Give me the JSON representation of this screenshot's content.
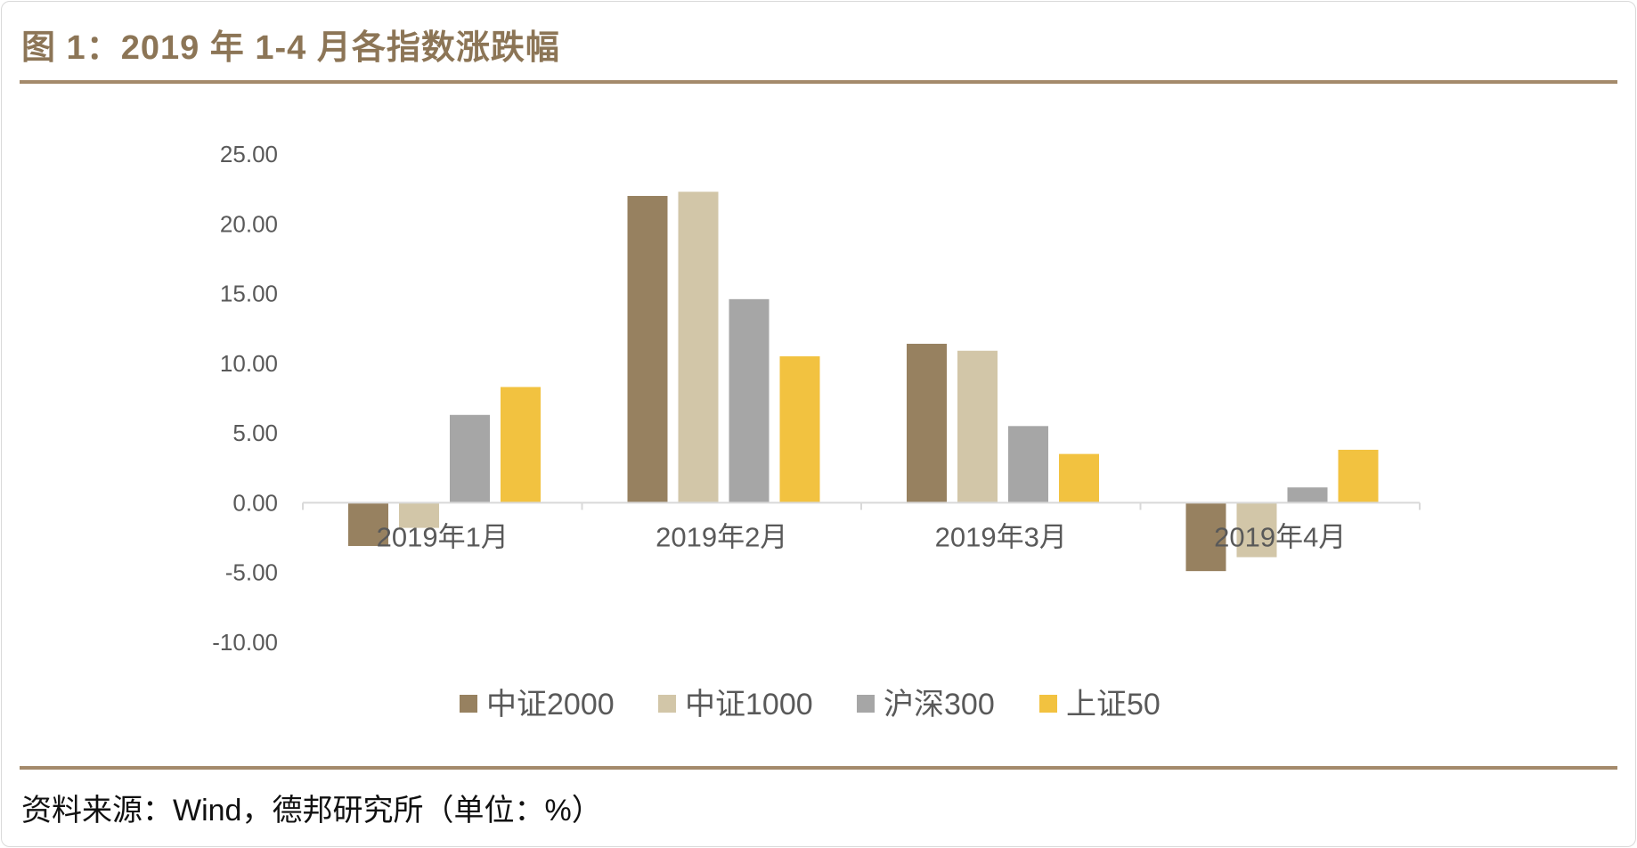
{
  "figure": {
    "title": "图 1：2019 年 1-4 月各指数涨跌幅",
    "source": "资料来源：Wind，德邦研究所（单位：%）"
  },
  "colors": {
    "title": "#8c7556",
    "rule": "#a48a6b",
    "axis_text": "#595959",
    "axis_line": "#d9d9d9"
  },
  "chart_data": {
    "type": "bar",
    "title": "",
    "xlabel": "",
    "ylabel": "",
    "ylim": [
      -10,
      25
    ],
    "yticks": [
      25,
      20,
      15,
      10,
      5,
      0,
      -5,
      -10
    ],
    "ytick_labels": [
      "25.00",
      "20.00",
      "15.00",
      "10.00",
      "5.00",
      "0.00",
      "-5.00",
      "-10.00"
    ],
    "categories": [
      "2019年1月",
      "2019年2月",
      "2019年3月",
      "2019年4月"
    ],
    "series": [
      {
        "name": "中证2000",
        "color": "#978160",
        "values": [
          -3.1,
          22.0,
          11.4,
          -4.9
        ]
      },
      {
        "name": "中证1000",
        "color": "#d2c6a8",
        "values": [
          -1.8,
          22.3,
          10.9,
          -3.9
        ]
      },
      {
        "name": "沪深300",
        "color": "#a6a6a6",
        "values": [
          6.3,
          14.6,
          5.5,
          1.1
        ]
      },
      {
        "name": "上证50",
        "color": "#f2c240",
        "values": [
          8.3,
          10.5,
          3.5,
          3.8
        ]
      }
    ],
    "legend_position": "bottom",
    "grid": false
  }
}
